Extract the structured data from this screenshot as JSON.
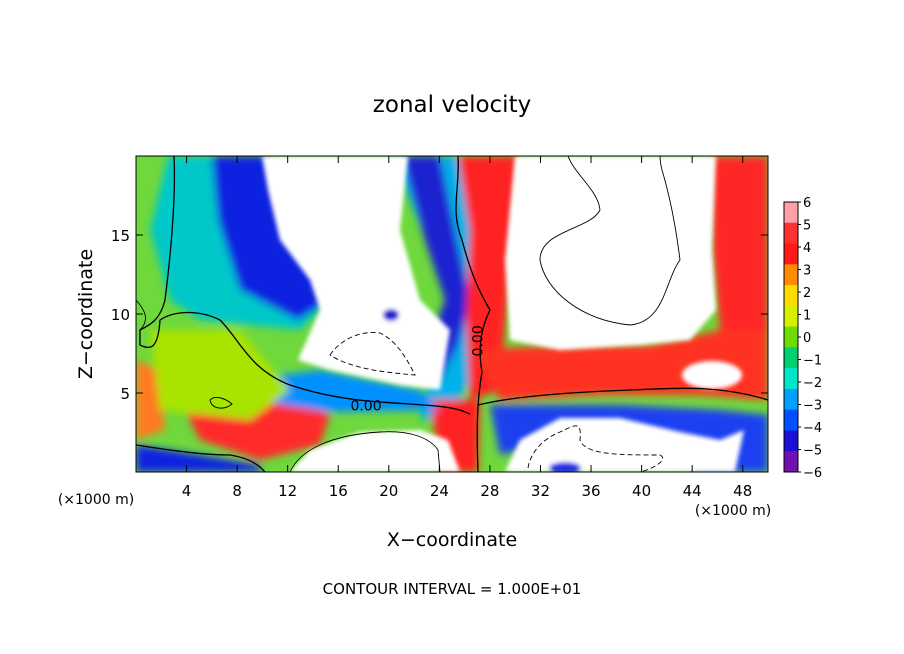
{
  "chart_data": {
    "type": "heatmap",
    "title": "zonal velocity",
    "xlabel": "X−coordinate",
    "ylabel": "Z−coordinate",
    "x_unit_left": "(×1000 m)",
    "x_unit_right": "(×1000 m)",
    "footer": "CONTOUR INTERVAL = 1.000E+01",
    "xlim": [
      0,
      50
    ],
    "ylim": [
      0,
      20
    ],
    "x_ticks": [
      4,
      8,
      12,
      16,
      20,
      24,
      28,
      32,
      36,
      40,
      44,
      48
    ],
    "x_tick_labels": [
      "4",
      "8",
      "12",
      "16",
      "20",
      "24",
      "28",
      "32",
      "36",
      "40",
      "44",
      "48"
    ],
    "y_ticks": [
      5,
      10,
      15
    ],
    "y_tick_labels": [
      "5",
      "10",
      "15"
    ],
    "colorbar": {
      "min": -6,
      "max": 6,
      "ticks": [
        6,
        5,
        4,
        3,
        2,
        1,
        0,
        -1,
        -2,
        -3,
        -4,
        -5,
        -6
      ],
      "tick_labels": [
        "6",
        "5",
        "4",
        "3",
        "2",
        "1",
        "0",
        "−1",
        "−2",
        "−3",
        "−4",
        "−5",
        "−6"
      ],
      "colors": [
        "#ff9fa8",
        "#ff3030",
        "#ff1a1a",
        "#ff8c00",
        "#ffdc00",
        "#d6f000",
        "#6edc00",
        "#00d070",
        "#00e6c8",
        "#00a0ff",
        "#0050ff",
        "#1a10d8",
        "#7010b0"
      ]
    },
    "contour_labels": [
      {
        "text": "0.00",
        "x": 18.2,
        "z": 4.2
      },
      {
        "text": "0.00",
        "x": 27.0,
        "z": 8.3
      }
    ]
  }
}
